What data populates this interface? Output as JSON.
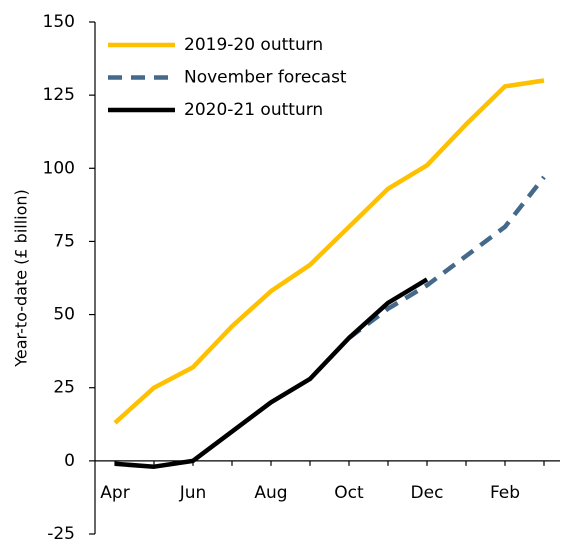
{
  "chart_data": {
    "type": "line",
    "ylabel": "Year-to-date (£ billion)",
    "categories": [
      "Apr",
      null,
      "Jun",
      null,
      "Aug",
      null,
      "Oct",
      null,
      "Dec",
      null,
      "Feb",
      null
    ],
    "series": [
      {
        "name": "2019-20 outturn",
        "color": "#ffc000",
        "dash": false,
        "values": [
          13,
          25,
          32,
          46,
          58,
          67,
          80,
          93,
          101,
          115,
          128,
          130
        ]
      },
      {
        "name": "November forecast",
        "color": "#44698b",
        "dash": true,
        "values": [
          null,
          null,
          null,
          null,
          null,
          null,
          42,
          52,
          60,
          70,
          80,
          97
        ]
      },
      {
        "name": "2020-21 outturn",
        "color": "#000000",
        "dash": false,
        "values": [
          -1,
          -2,
          0,
          10,
          20,
          28,
          42,
          54,
          62,
          null,
          null,
          null
        ]
      }
    ],
    "ylim": [
      -25,
      150
    ],
    "yticks": [
      -25,
      0,
      25,
      50,
      75,
      100,
      125,
      150
    ]
  }
}
